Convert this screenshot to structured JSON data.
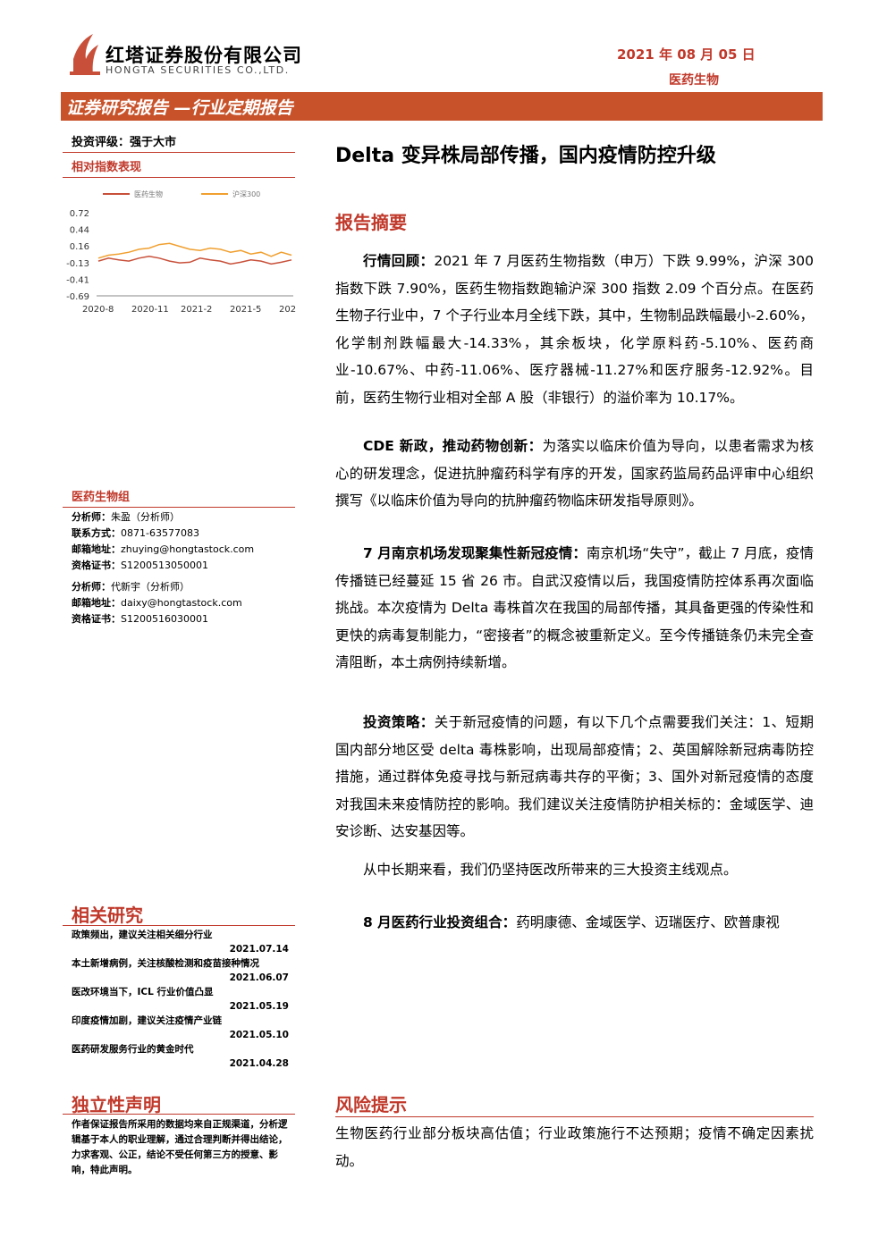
{
  "header": {
    "company": "红塔证券股份有限公司",
    "company_en": "HONGTA SECURITIES CO.,LTD.",
    "date": "2021 年 08 月 05 日",
    "sector": "医药生物"
  },
  "banner": "证券研究报告 —行业定期报告",
  "rating": "投资评级：强于大市",
  "index_label": "相对指数表现",
  "chart": {
    "type": "line",
    "xlabels": [
      "2020-8",
      "2020-11",
      "2021-2",
      "2021-5",
      "202"
    ],
    "ylim": [
      -0.69,
      0.72
    ],
    "yticks": [
      0.72,
      0.44,
      0.16,
      -0.13,
      -0.41,
      -0.69
    ],
    "series": [
      {
        "name": "医药生物",
        "color": "#c8503a",
        "values": [
          -0.1,
          -0.05,
          -0.08,
          -0.1,
          -0.05,
          -0.02,
          -0.05,
          -0.1,
          -0.13,
          -0.12,
          -0.05,
          -0.08,
          -0.1,
          -0.15,
          -0.12,
          -0.08,
          -0.1,
          -0.15,
          -0.12,
          -0.08
        ]
      },
      {
        "name": "沪深300",
        "color": "#f0a030",
        "values": [
          -0.05,
          0.0,
          0.02,
          0.05,
          0.1,
          0.12,
          0.18,
          0.2,
          0.15,
          0.1,
          0.08,
          0.12,
          0.1,
          0.05,
          0.08,
          0.02,
          0.05,
          -0.02,
          0.05,
          0.0
        ]
      }
    ]
  },
  "team": {
    "title": "医药生物组",
    "rows": [
      [
        "分析师：",
        "朱盈（分析师）"
      ],
      [
        "联系方式：",
        "0871-63577083"
      ],
      [
        "邮箱地址：",
        "zhuying@hongtastock.com"
      ],
      [
        "资格证书：",
        "S1200513050001"
      ],
      [
        "分析师：",
        "代新宇（分析师）"
      ],
      [
        "邮箱地址：",
        "daixy@hongtastock.com"
      ],
      [
        "资格证书：",
        "S1200516030001"
      ]
    ]
  },
  "related": {
    "title": "相关研究",
    "items": [
      {
        "title": "政策频出，建议关注相关细分行业",
        "date": "2021.07.14"
      },
      {
        "title": "本土新增病例，关注核酸检测和疫苗接种情况",
        "date": "2021.06.07"
      },
      {
        "title": "医改环境当下，ICL 行业价值凸显",
        "date": "2021.05.19"
      },
      {
        "title": "印度疫情加剧，建议关注疫情产业链",
        "date": "2021.05.10"
      },
      {
        "title": "医药研发服务行业的黄金时代",
        "date": "2021.04.28"
      }
    ]
  },
  "disclaimer": {
    "title": "独立性声明",
    "text": "作者保证报告所采用的数据均来自正规渠道，分析逻辑基于本人的职业理解，通过合理判断并得出结论，力求客观、公正，结论不受任何第三方的授意、影响，特此声明。"
  },
  "title": "Delta 变异株局部传播，国内疫情防控升级",
  "summary": {
    "title": "报告摘要",
    "paragraphs": [
      {
        "lead": "行情回顾：",
        "text": "2021 年 7 月医药生物指数（申万）下跌 9.99%，沪深 300 指数下跌 7.90%，医药生物指数跑输沪深 300 指数 2.09 个百分点。在医药生物子行业中，7 个子行业本月全线下跌，其中，生物制品跌幅最小-2.60%，化学制剂跌幅最大-14.33%，其余板块，化学原料药-5.10%、医药商业-10.67%、中药-11.06%、医疗器械-11.27%和医疗服务-12.92%。目前，医药生物行业相对全部 A 股（非银行）的溢价率为 10.17%。"
      },
      {
        "lead": "CDE 新政，推动药物创新：",
        "text": "为落实以临床价值为导向，以患者需求为核心的研发理念，促进抗肿瘤药科学有序的开发，国家药监局药品评审中心组织撰写《以临床价值为导向的抗肿瘤药物临床研发指导原则》。"
      },
      {
        "lead": "7 月南京机场发现聚集性新冠疫情：",
        "text": "南京机场“失守”，截止 7 月底，疫情传播链已经蔓延 15 省 26 市。自武汉疫情以后，我国疫情防控体系再次面临挑战。本次疫情为 Delta 毒株首次在我国的局部传播，其具备更强的传染性和更快的病毒复制能力，“密接者”的概念被重新定义。至今传播链条仍未完全查清阻断，本土病例持续新增。"
      },
      {
        "lead": "投资策略：",
        "text": "关于新冠疫情的问题，有以下几个点需要我们关注：1、短期国内部分地区受 delta 毒株影响，出现局部疫情；2、英国解除新冠病毒防控措施，通过群体免疫寻找与新冠病毒共存的平衡；3、国外对新冠疫情的态度对我国未来疫情防控的影响。我们建议关注疫情防护相关标的：金域医学、迪安诊断、达安基因等。"
      },
      {
        "lead": "",
        "text": "从中长期来看，我们仍坚持医改所带来的三大投资主线观点。"
      },
      {
        "lead": "8 月医药行业投资组合：",
        "text": "药明康德、金域医学、迈瑞医疗、欧普康视"
      }
    ]
  },
  "risk": {
    "title": "风险提示",
    "text": "生物医药行业部分板块高估值；行业政策施行不达预期；疫情不确定因素扰动。"
  }
}
